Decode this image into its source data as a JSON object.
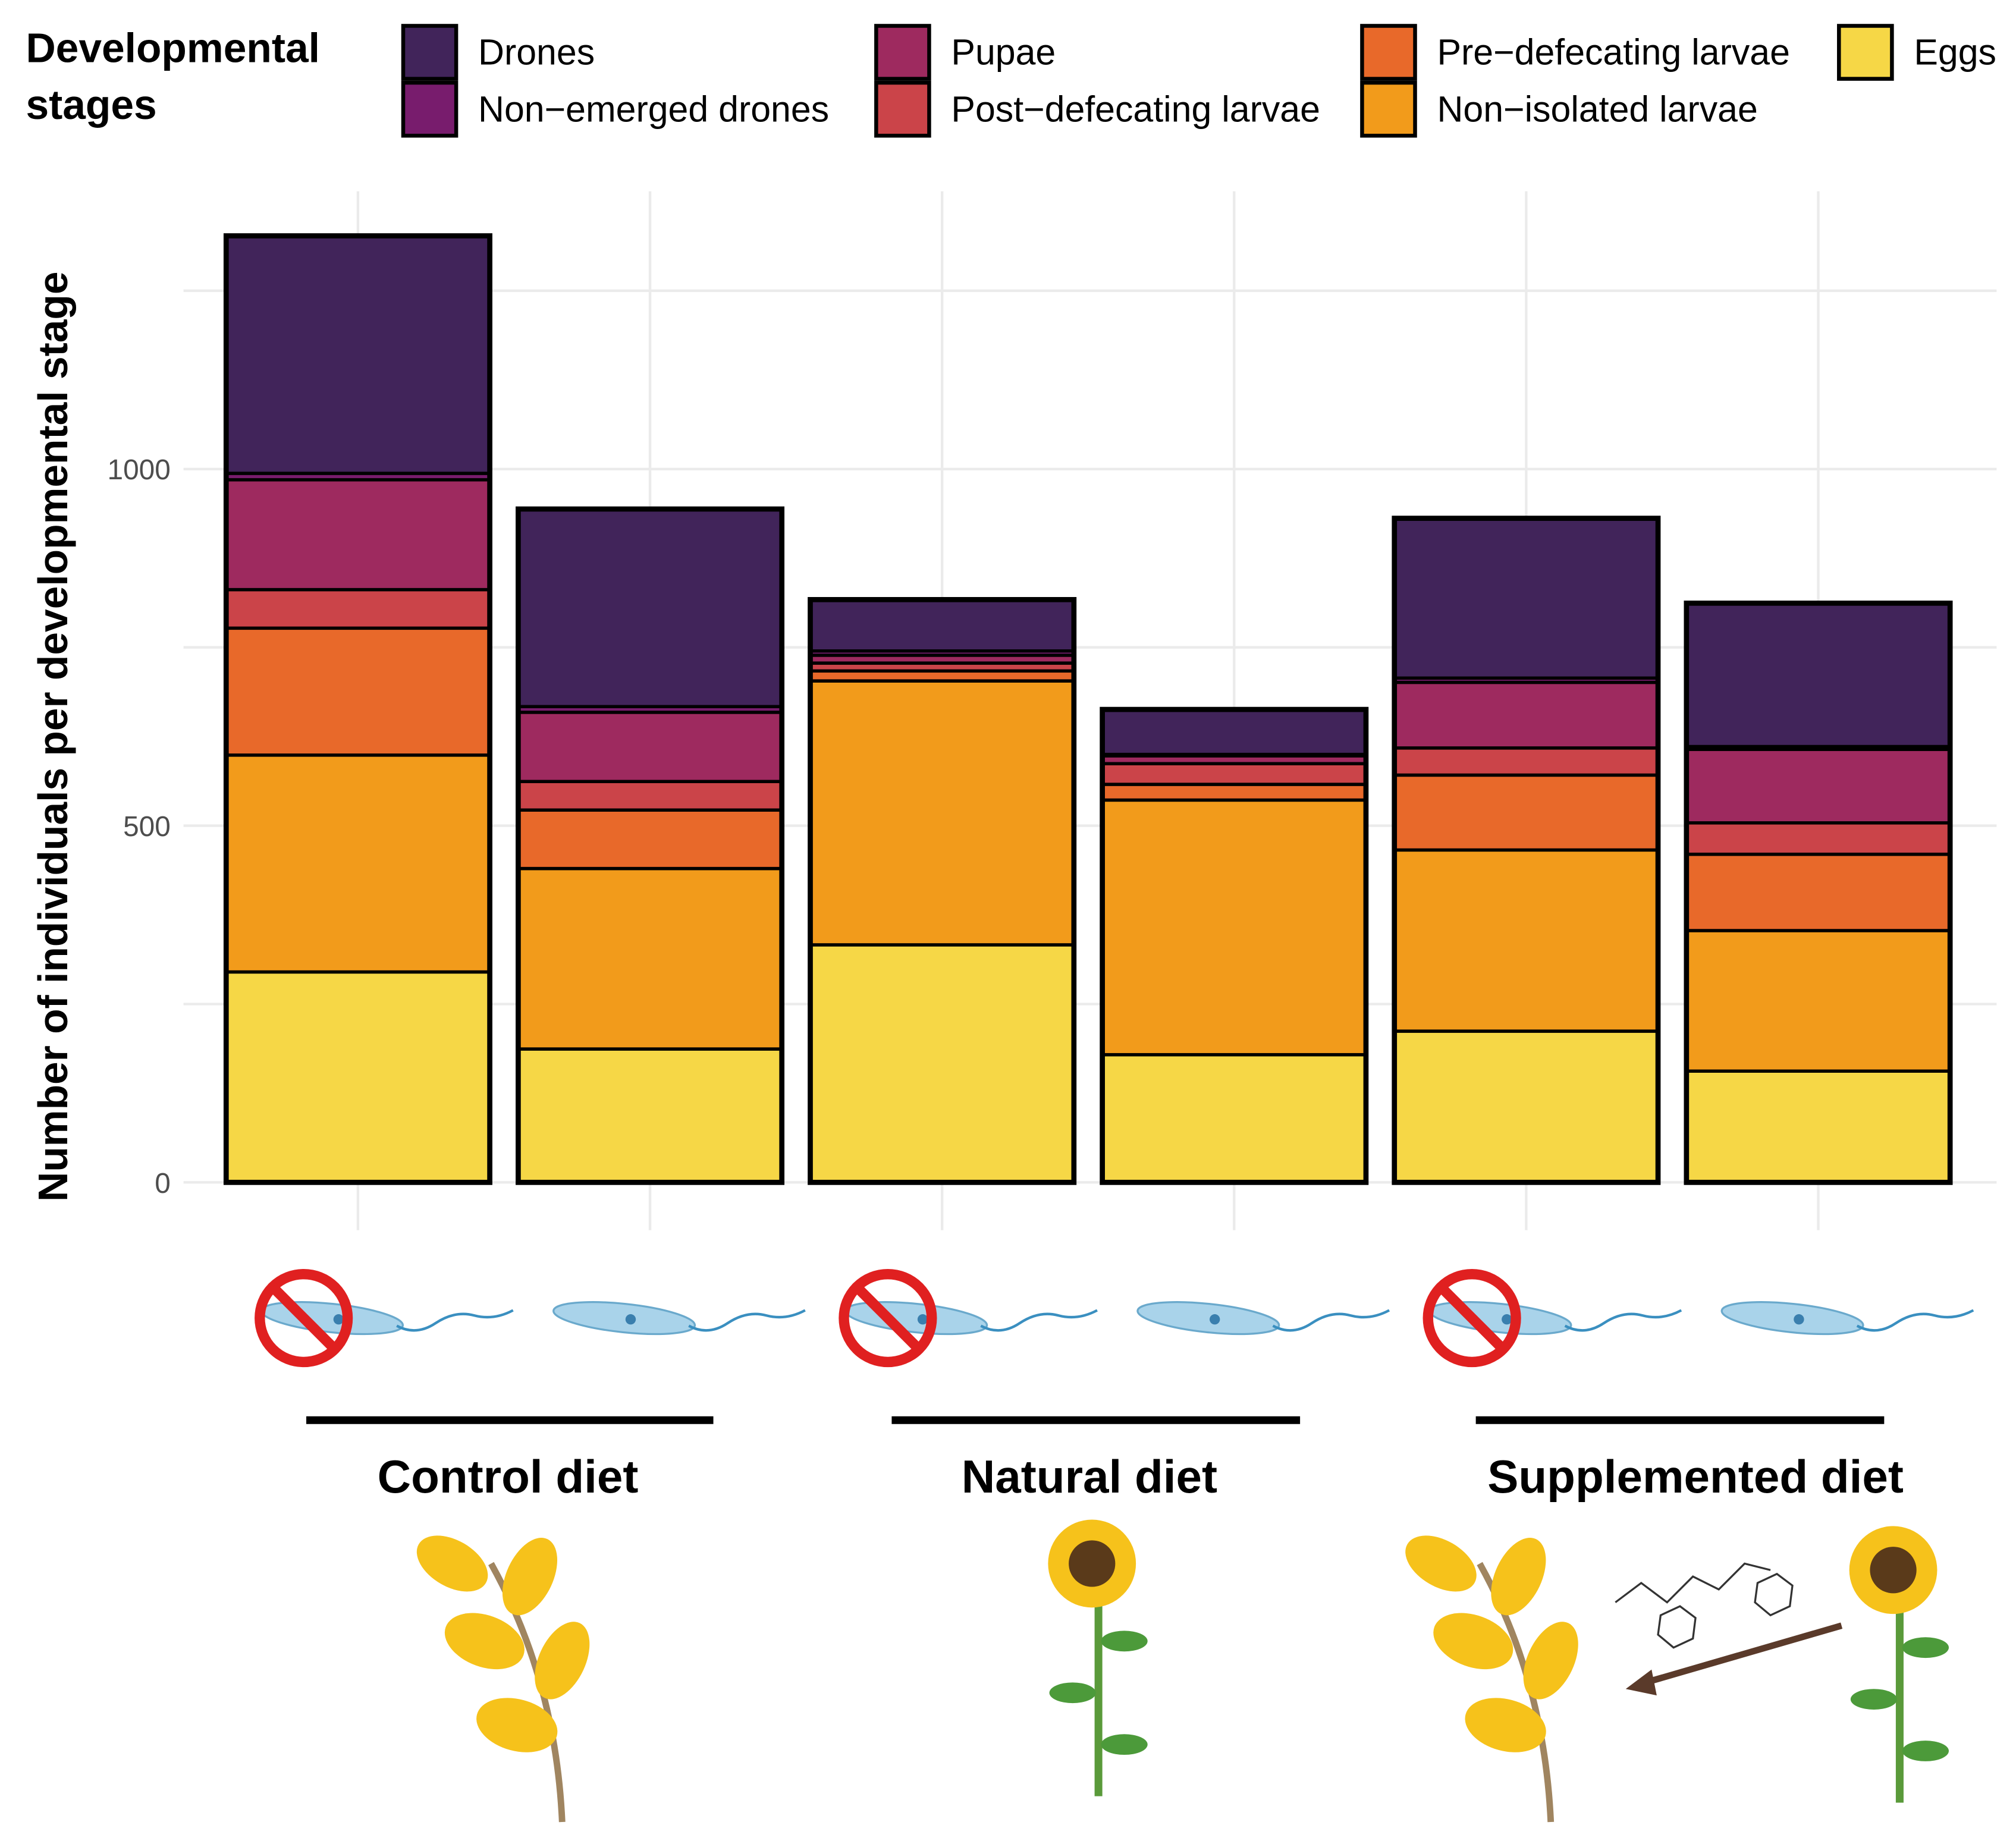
{
  "chart_data": {
    "type": "bar",
    "stacked": true,
    "ylabel": "Number of individuals per developmental stage",
    "ylim": [
      0,
      1400
    ],
    "yticks": [
      0,
      500,
      1000
    ],
    "grid": true,
    "legend": {
      "title": "Developmental stages",
      "placement": "top"
    },
    "stages": [
      {
        "name": "Eggs",
        "color": "#F6D746"
      },
      {
        "name": "Non−isolated larvae",
        "color": "#F29B1B"
      },
      {
        "name": "Pre−defecating larvae",
        "color": "#E8692A"
      },
      {
        "name": "Post−defecating larvae",
        "color": "#CB4449"
      },
      {
        "name": "Pupae",
        "color": "#9E2A5F"
      },
      {
        "name": "Non−emerged drones",
        "color": "#781C6D"
      },
      {
        "name": "Drones",
        "color": "#41245A"
      }
    ],
    "groups": [
      "Control diet",
      "Natural diet",
      "Supplemented diet"
    ],
    "bars": [
      {
        "group": 0,
        "infected": false,
        "values": [
          295,
          304,
          178,
          54,
          154,
          9,
          333
        ]
      },
      {
        "group": 0,
        "infected": true,
        "values": [
          187,
          253,
          82,
          40,
          97,
          8,
          277
        ]
      },
      {
        "group": 1,
        "infected": false,
        "values": [
          333,
          370,
          14,
          11,
          11,
          6,
          72
        ]
      },
      {
        "group": 1,
        "infected": true,
        "values": [
          179,
          357,
          22,
          29,
          11,
          2,
          63
        ]
      },
      {
        "group": 2,
        "infected": false,
        "values": [
          212,
          254,
          105,
          38,
          92,
          6,
          224
        ]
      },
      {
        "group": 2,
        "infected": true,
        "values": [
          156,
          197,
          107,
          44,
          103,
          4,
          201
        ]
      }
    ]
  }
}
